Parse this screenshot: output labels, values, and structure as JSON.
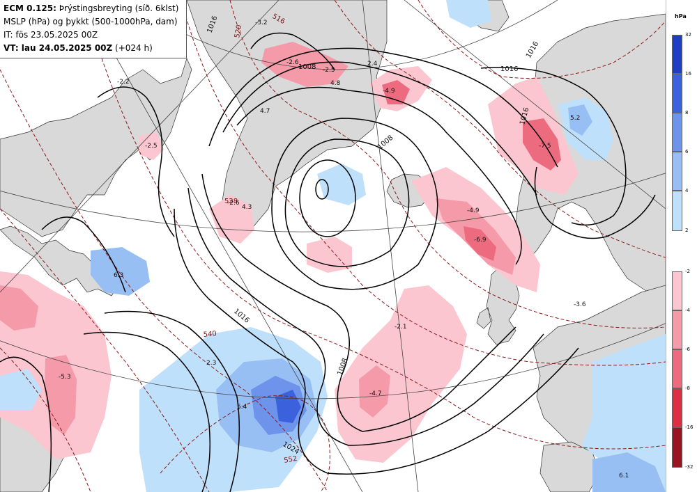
{
  "header": {
    "model": "ECM 0.125:",
    "product": " Þrýstingsbreyting (síð. 6klst)",
    "fields": "MSLP (hPa) og þykkt (500-1000hPa, dam)",
    "init_time": "IT: fös 23.05.2025 00Z",
    "valid_label": "VT: lau 24.05.2025 00Z",
    "lead_time": " (+024 h)"
  },
  "legend": {
    "unit": "hPa",
    "rise_ticks": [
      "32",
      "16",
      "8",
      "6",
      "4",
      "2"
    ],
    "fall_ticks": [
      "-2",
      "-4",
      "-6",
      "-8",
      "-16",
      "-32"
    ],
    "rise_colors": [
      "#1f3ec4",
      "#3b62dc",
      "#6d93ea",
      "#98bff3",
      "#bfe0fb"
    ],
    "fall_colors": [
      "#fbc6d0",
      "#f49aa8",
      "#ec6b7e",
      "#dc2f44",
      "#9a1522"
    ]
  },
  "map": {
    "isobar_labels": [
      "1016",
      "1016",
      "1008",
      "1016",
      "1016",
      "1008",
      "1008",
      "1016",
      "1024"
    ],
    "thickness_labels": [
      "520",
      "516",
      "528",
      "540",
      "552"
    ],
    "tendency_values": [
      "-3.2",
      "-2.2",
      "-2.6",
      "-2.5",
      "4.7",
      "4.8",
      "2.4",
      "-4.9",
      "5.2",
      "-7.5",
      "-2.5",
      "-2.6",
      "4.3",
      "6.3",
      "-4.9",
      "-6.9",
      "-2.1",
      "-3.6",
      "2.3",
      "-5.3",
      "5.4",
      "-4.7",
      "6.1"
    ],
    "colors": {
      "land": "#d9d9d9",
      "isobar": "#000000",
      "thickness": "#8b1a1a",
      "grid": "#444444"
    }
  }
}
